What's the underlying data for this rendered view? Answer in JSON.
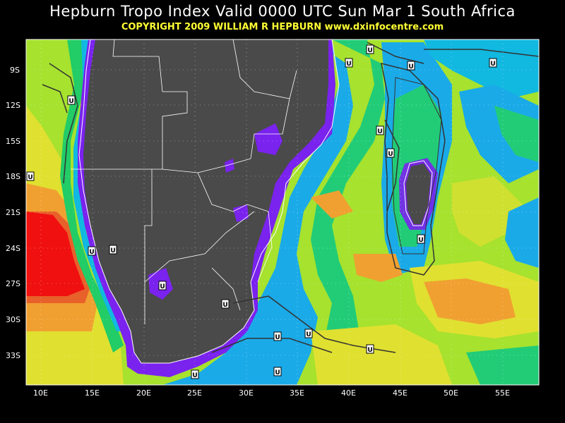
{
  "header": {
    "title": "Hepburn Tropo Index Valid 0000 UTC Sun Mar 1 South Africa",
    "copyright": "COPYRIGHT 2009   WILLIAM R HEPBURN   www.dxinfocentre.com"
  },
  "axes": {
    "latitudes": [
      "9S",
      "12S",
      "15S",
      "18S",
      "21S",
      "24S",
      "27S",
      "30S",
      "33S"
    ],
    "longitudes": [
      "10E",
      "15E",
      "20E",
      "25E",
      "30E",
      "35E",
      "40E",
      "45E",
      "50E",
      "55E"
    ]
  },
  "markers": {
    "label": "U",
    "count": 18
  },
  "colors": {
    "land": "#4a4a4a",
    "background": "#000000",
    "ocean_base": "#a6e22e"
  }
}
